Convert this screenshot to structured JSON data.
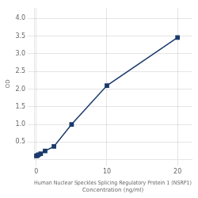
{
  "chart_data": {
    "type": "line",
    "xlabel": [
      "Human Nuclear Speckles Splicing Regulatory Protein 1 (NSRP1)",
      "Concentration (ng/ml)"
    ],
    "ylabel": "OD",
    "x": [
      0,
      0.156,
      0.313,
      0.625,
      1.25,
      2.5,
      5,
      10,
      20
    ],
    "series": [
      {
        "values": [
          0.105,
          0.118,
          0.137,
          0.168,
          0.245,
          0.374,
          1.0,
          2.1,
          3.46
        ],
        "color": "#1a3a6b",
        "marker": "square",
        "line_style": "solid"
      }
    ],
    "xlim": [
      -0.3,
      22
    ],
    "ylim": [
      0,
      4.3
    ],
    "xticks": [
      0,
      10,
      20
    ],
    "yticks": [
      0.5,
      {
        "value": 1,
        "label": "1.0"
      },
      1.5,
      {
        "value": 2,
        "label": "2.0"
      },
      2.5,
      {
        "value": 3,
        "label": "3.0"
      },
      3.5,
      {
        "value": 4,
        "label": "4.0"
      }
    ],
    "grid": true
  }
}
